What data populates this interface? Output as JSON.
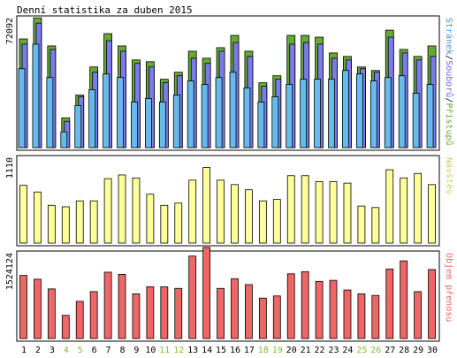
{
  "title": "Denní statistika za duben 2015",
  "colors": {
    "background": "#ffffff",
    "frame": "#000000",
    "hits": "#66aa33",
    "files": "#7b7bee",
    "pages": "#66bbee",
    "visits": "#ffff99",
    "kbytes": "#ee6666",
    "weekend_label": "#88bb33",
    "weekday_label": "#000000"
  },
  "chart_data": [
    {
      "type": "bar",
      "name": "hits-files-pages",
      "max_label": "72092",
      "ymax": 72092,
      "series_labels": [
        {
          "text": "Stránek",
          "color": "#4499dd"
        },
        {
          "text": "/",
          "color": "#000000"
        },
        {
          "text": "Souborů",
          "color": "#6666ee"
        },
        {
          "text": "/",
          "color": "#000000"
        },
        {
          "text": "Přístupů",
          "color": "#66aa33"
        }
      ],
      "categories": [
        "1",
        "2",
        "3",
        "4",
        "5",
        "6",
        "7",
        "8",
        "9",
        "10",
        "11",
        "12",
        "13",
        "14",
        "15",
        "16",
        "17",
        "18",
        "19",
        "20",
        "21",
        "22",
        "23",
        "24",
        "25",
        "26",
        "27",
        "28",
        "29",
        "30"
      ],
      "series": [
        {
          "name": "Přístupů",
          "values": [
            62000,
            74000,
            58000,
            17000,
            30000,
            46000,
            65000,
            58000,
            50000,
            49000,
            39000,
            43000,
            55000,
            51000,
            57000,
            64000,
            55000,
            37000,
            41000,
            64000,
            64000,
            63000,
            54000,
            52000,
            46000,
            44000,
            67000,
            56000,
            52000,
            58000
          ]
        },
        {
          "name": "Souborů",
          "values": [
            59000,
            71000,
            56000,
            15000,
            29000,
            43000,
            61000,
            55000,
            48000,
            46000,
            37000,
            41000,
            51000,
            48000,
            55000,
            60000,
            52000,
            35000,
            39000,
            59000,
            60000,
            59000,
            51000,
            50000,
            45000,
            43000,
            63000,
            54000,
            50000,
            52000
          ]
        },
        {
          "name": "Stránek",
          "values": [
            45000,
            59000,
            40000,
            9000,
            24000,
            33000,
            42000,
            40000,
            26000,
            28000,
            26000,
            30000,
            38000,
            36000,
            40000,
            43000,
            34000,
            26000,
            29000,
            36000,
            39000,
            39000,
            39000,
            44000,
            42000,
            38000,
            40000,
            41000,
            31000,
            36000
          ]
        }
      ]
    },
    {
      "type": "bar",
      "name": "visits",
      "max_label": "1110",
      "ymax": 1110,
      "series_labels": [
        {
          "text": "Návštěv",
          "color": "#cccc66"
        }
      ],
      "categories": [
        "1",
        "2",
        "3",
        "4",
        "5",
        "6",
        "7",
        "8",
        "9",
        "10",
        "11",
        "12",
        "13",
        "14",
        "15",
        "16",
        "17",
        "18",
        "19",
        "20",
        "21",
        "22",
        "23",
        "24",
        "25",
        "26",
        "27",
        "28",
        "29",
        "30"
      ],
      "series": [
        {
          "name": "Návštěv",
          "values": [
            780,
            690,
            510,
            490,
            570,
            570,
            870,
            920,
            880,
            660,
            510,
            540,
            850,
            1020,
            850,
            790,
            720,
            570,
            590,
            910,
            910,
            830,
            830,
            810,
            500,
            480,
            990,
            880,
            940,
            790
          ]
        }
      ]
    },
    {
      "type": "bar",
      "name": "kbytes",
      "max_label": "1524124",
      "ymax": 1524124,
      "series_labels": [
        {
          "text": "Objem přenosu",
          "color": "#ee6666"
        }
      ],
      "categories": [
        "1",
        "2",
        "3",
        "4",
        "5",
        "6",
        "7",
        "8",
        "9",
        "10",
        "11",
        "12",
        "13",
        "14",
        "15",
        "16",
        "17",
        "18",
        "19",
        "20",
        "21",
        "22",
        "23",
        "24",
        "25",
        "26",
        "27",
        "28",
        "29",
        "30"
      ],
      "series": [
        {
          "name": "Objem přenosu",
          "values": [
            1170000,
            1100000,
            920000,
            430000,
            690000,
            870000,
            1230000,
            1190000,
            830000,
            960000,
            960000,
            930000,
            1530000,
            1690000,
            930000,
            1110000,
            1000000,
            750000,
            790000,
            1200000,
            1240000,
            1060000,
            1080000,
            900000,
            830000,
            800000,
            1290000,
            1440000,
            870000,
            1280000
          ]
        }
      ]
    }
  ],
  "x_axis": {
    "labels": [
      "1",
      "2",
      "3",
      "4",
      "5",
      "6",
      "7",
      "8",
      "9",
      "10",
      "11",
      "12",
      "13",
      "14",
      "15",
      "16",
      "17",
      "18",
      "19",
      "20",
      "21",
      "22",
      "23",
      "24",
      "25",
      "26",
      "27",
      "28",
      "29",
      "30"
    ],
    "weekend_days": [
      "4",
      "5",
      "11",
      "12",
      "18",
      "19",
      "25",
      "26"
    ]
  }
}
